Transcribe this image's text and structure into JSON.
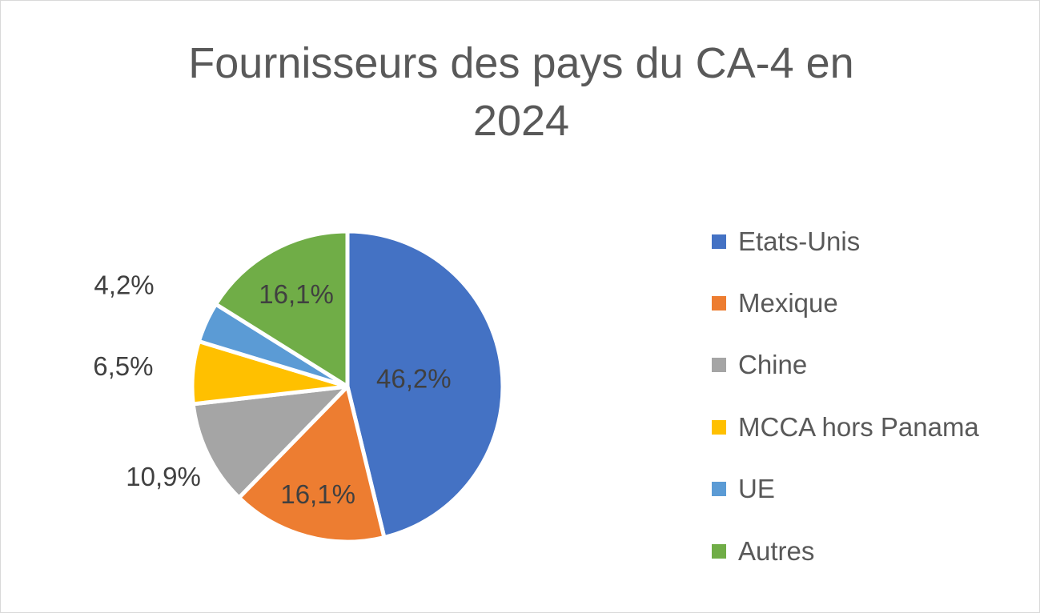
{
  "chart_data": {
    "type": "pie",
    "title_lines": [
      "Fournisseurs des pays du CA-4 en",
      "2024"
    ],
    "categories": [
      "Etats-Unis",
      "Mexique",
      "Chine",
      "MCCA hors Panama",
      "UE",
      "Autres"
    ],
    "values": [
      46.2,
      16.1,
      10.9,
      6.5,
      4.2,
      16.1
    ],
    "data_labels": [
      "46,2%",
      "16,1%",
      "10,9%",
      "6,5%",
      "4,2%",
      "16,1%"
    ],
    "colors": [
      "#4472C4",
      "#ED7D31",
      "#A5A5A5",
      "#FFC000",
      "#5B9BD5",
      "#70AD47"
    ],
    "legend_position": "right",
    "start_angle": "12 o'clock",
    "direction": "clockwise"
  }
}
